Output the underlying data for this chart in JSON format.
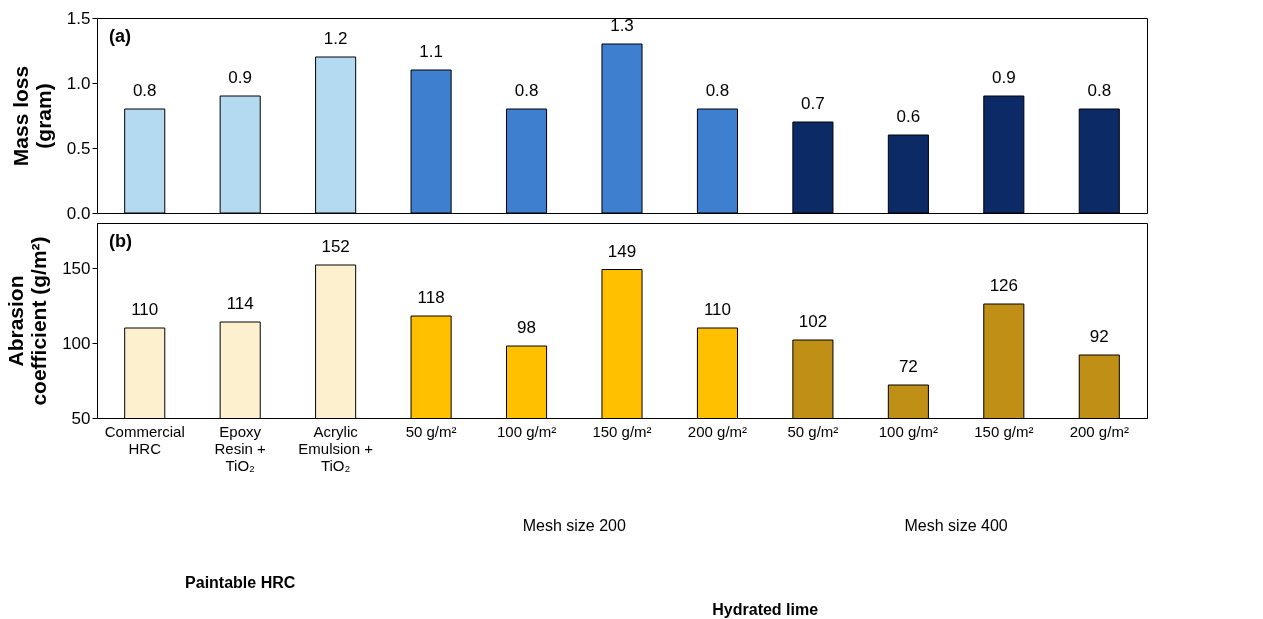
{
  "chart_data": [
    {
      "type": "bar",
      "title": "(a)",
      "ylabel": "Mass loss (gram)",
      "categories": [
        null,
        null,
        null,
        null,
        null,
        null,
        null,
        null,
        null,
        null,
        null
      ],
      "values": [
        0.8,
        0.9,
        1.2,
        1.1,
        0.8,
        1.3,
        0.8,
        0.7,
        0.6,
        0.9,
        0.8
      ],
      "colors": [
        "#b4daf2",
        "#b4daf2",
        "#b4daf2",
        "#3f7fd0",
        "#3f7fd0",
        "#3f7fd0",
        "#3f7fd0",
        "#0b2a66",
        "#0b2a66",
        "#0b2a66",
        "#0b2a66"
      ],
      "ylim": [
        0,
        1.5
      ],
      "yticks": [
        {
          "value": 0,
          "label": "0.0"
        },
        {
          "value": 0.5,
          "label": "0.5"
        },
        {
          "value": 1,
          "label": "1.0"
        },
        {
          "value": 1.5,
          "label": "1.5"
        }
      ],
      "data_labels": true,
      "grid": false,
      "legend": false,
      "tick_labels": "y"
    },
    {
      "type": "bar",
      "title": "(b)",
      "ylabel": "Abrasion coefficient (g/m²)",
      "categories": [
        "Commercial HRC",
        "Epoxy Resin + TiO₂",
        "Acrylic Emulsion + TiO₂",
        "50 g/m²",
        "100 g/m²",
        "150 g/m²",
        "200 g/m²",
        "50 g/m²",
        "100 g/m²",
        "150 g/m²",
        "200 g/m²"
      ],
      "values": [
        110,
        114,
        152,
        118,
        98,
        149,
        110,
        102,
        72,
        126,
        92
      ],
      "colors": [
        "#fdf0cf",
        "#fdf0cf",
        "#fdf0cf",
        "#ffc000",
        "#ffc000",
        "#ffc000",
        "#ffc000",
        "#bf9015",
        "#bf9015",
        "#bf9015",
        "#bf9015"
      ],
      "ylim": [
        50,
        180
      ],
      "yticks": [
        50,
        100,
        150
      ],
      "data_labels": true,
      "grid": false,
      "legend": false,
      "annotations": [
        "Mesh size 200",
        "Mesh size 400",
        "Paintable HRC",
        "Hydrated lime"
      ]
    }
  ]
}
